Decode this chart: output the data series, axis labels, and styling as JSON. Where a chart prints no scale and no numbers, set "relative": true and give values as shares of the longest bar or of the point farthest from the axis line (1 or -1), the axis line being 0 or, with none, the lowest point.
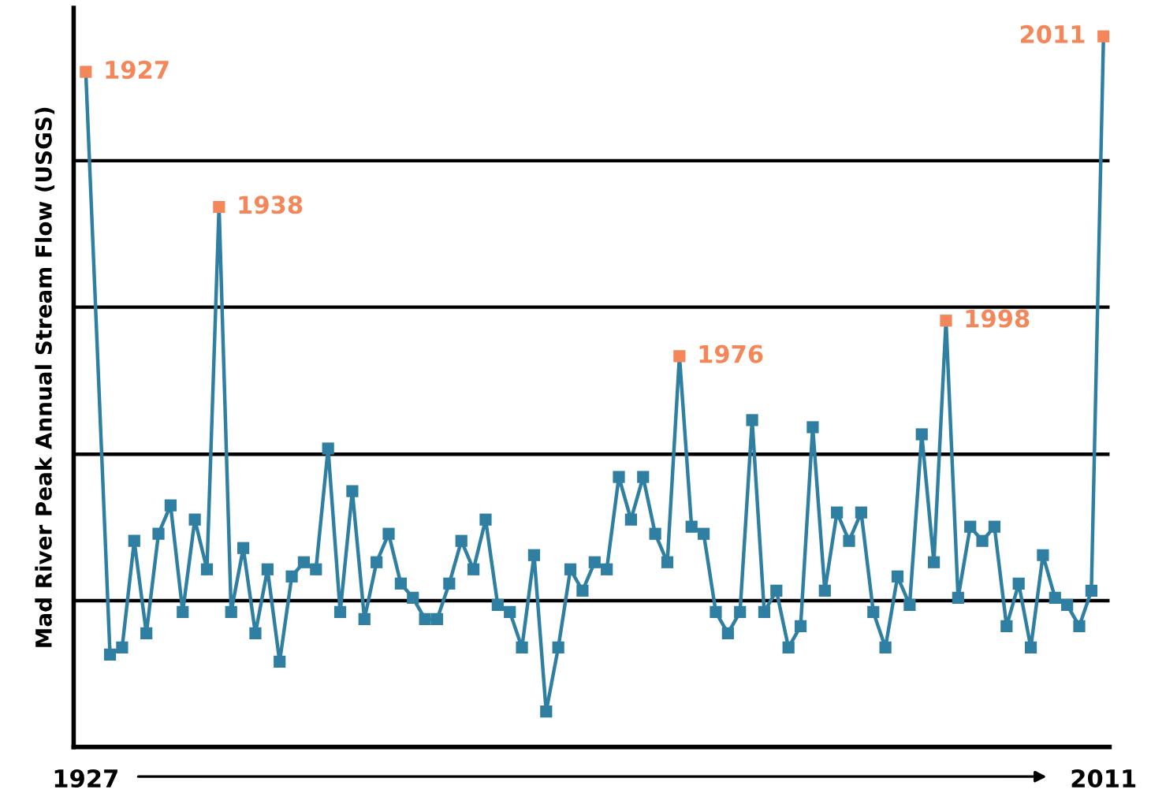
{
  "chart_data": {
    "type": "line",
    "relative": true,
    "ylabel": "Mad River Peak Annual Stream Flow (USGS)",
    "xticks": [
      1927,
      2011
    ],
    "xlim": [
      1926,
      2011.5
    ],
    "marker": "square",
    "line_style": "solid",
    "grid": false,
    "legend": false,
    "x": [
      1927,
      1929,
      1930,
      1931,
      1932,
      1933,
      1934,
      1935,
      1936,
      1937,
      1938,
      1939,
      1940,
      1941,
      1942,
      1943,
      1944,
      1945,
      1946,
      1947,
      1948,
      1949,
      1950,
      1951,
      1952,
      1953,
      1954,
      1955,
      1956,
      1957,
      1958,
      1959,
      1960,
      1961,
      1962,
      1963,
      1964,
      1965,
      1966,
      1967,
      1968,
      1969,
      1970,
      1971,
      1972,
      1973,
      1974,
      1975,
      1976,
      1977,
      1978,
      1979,
      1980,
      1981,
      1982,
      1983,
      1984,
      1985,
      1986,
      1987,
      1988,
      1989,
      1990,
      1991,
      1992,
      1993,
      1994,
      1995,
      1996,
      1997,
      1998,
      1999,
      2000,
      2001,
      2002,
      2003,
      2004,
      2005,
      2006,
      2007,
      2008,
      2009,
      2010,
      2011
    ],
    "series": [
      {
        "color": "#2f7fa3",
        "colors": [
          "#f4875a",
          "#2f7fa3",
          "#2f7fa3",
          "#2f7fa3",
          "#2f7fa3",
          "#2f7fa3",
          "#2f7fa3",
          "#2f7fa3",
          "#2f7fa3",
          "#2f7fa3",
          "#f4875a",
          "#2f7fa3",
          "#2f7fa3",
          "#2f7fa3",
          "#2f7fa3",
          "#2f7fa3",
          "#2f7fa3",
          "#2f7fa3",
          "#2f7fa3",
          "#2f7fa3",
          "#2f7fa3",
          "#2f7fa3",
          "#2f7fa3",
          "#2f7fa3",
          "#2f7fa3",
          "#2f7fa3",
          "#2f7fa3",
          "#2f7fa3",
          "#2f7fa3",
          "#2f7fa3",
          "#2f7fa3",
          "#2f7fa3",
          "#2f7fa3",
          "#2f7fa3",
          "#2f7fa3",
          "#2f7fa3",
          "#2f7fa3",
          "#2f7fa3",
          "#2f7fa3",
          "#2f7fa3",
          "#2f7fa3",
          "#2f7fa3",
          "#2f7fa3",
          "#2f7fa3",
          "#2f7fa3",
          "#2f7fa3",
          "#2f7fa3",
          "#2f7fa3",
          "#f4875a",
          "#2f7fa3",
          "#2f7fa3",
          "#2f7fa3",
          "#2f7fa3",
          "#2f7fa3",
          "#2f7fa3",
          "#2f7fa3",
          "#2f7fa3",
          "#2f7fa3",
          "#2f7fa3",
          "#2f7fa3",
          "#2f7fa3",
          "#2f7fa3",
          "#2f7fa3",
          "#2f7fa3",
          "#2f7fa3",
          "#2f7fa3",
          "#2f7fa3",
          "#2f7fa3",
          "#2f7fa3",
          "#2f7fa3",
          "#f4875a",
          "#2f7fa3",
          "#2f7fa3",
          "#2f7fa3",
          "#2f7fa3",
          "#2f7fa3",
          "#2f7fa3",
          "#2f7fa3",
          "#2f7fa3",
          "#2f7fa3",
          "#2f7fa3",
          "#2f7fa3",
          "#2f7fa3",
          "#f4875a"
        ],
        "values": [
          0.95,
          0.13,
          0.14,
          0.29,
          0.16,
          0.3,
          0.34,
          0.19,
          0.32,
          0.25,
          0.76,
          0.19,
          0.28,
          0.16,
          0.25,
          0.12,
          0.24,
          0.26,
          0.25,
          0.42,
          0.19,
          0.36,
          0.18,
          0.26,
          0.3,
          0.23,
          0.21,
          0.18,
          0.18,
          0.23,
          0.29,
          0.25,
          0.32,
          0.2,
          0.19,
          0.14,
          0.27,
          0.05,
          0.14,
          0.25,
          0.22,
          0.26,
          0.25,
          0.38,
          0.32,
          0.38,
          0.3,
          0.26,
          0.55,
          0.31,
          0.3,
          0.19,
          0.16,
          0.19,
          0.46,
          0.19,
          0.22,
          0.14,
          0.17,
          0.45,
          0.22,
          0.33,
          0.29,
          0.33,
          0.19,
          0.14,
          0.24,
          0.2,
          0.44,
          0.26,
          0.6,
          0.21,
          0.31,
          0.29,
          0.31,
          0.17,
          0.23,
          0.14,
          0.27,
          0.21,
          0.2,
          0.17,
          0.22,
          1
        ]
      }
    ],
    "ref_lines": [
      {
        "axis": "y",
        "value": 0.206,
        "color": "#000000"
      },
      {
        "axis": "y",
        "value": 0.412,
        "color": "#000000"
      },
      {
        "axis": "y",
        "value": 0.619,
        "color": "#000000"
      },
      {
        "axis": "y",
        "value": 0.825,
        "color": "#000000"
      }
    ],
    "annotations": [
      {
        "text": "1927",
        "x": 1927,
        "y": 0.95
      },
      {
        "text": "1938",
        "x": 1938,
        "y": 0.76
      },
      {
        "text": "1976",
        "x": 1976,
        "y": 0.55
      },
      {
        "text": "1998",
        "x": 1998,
        "y": 0.6
      },
      {
        "text": "2011",
        "x": 2011,
        "y": 1
      }
    ]
  }
}
